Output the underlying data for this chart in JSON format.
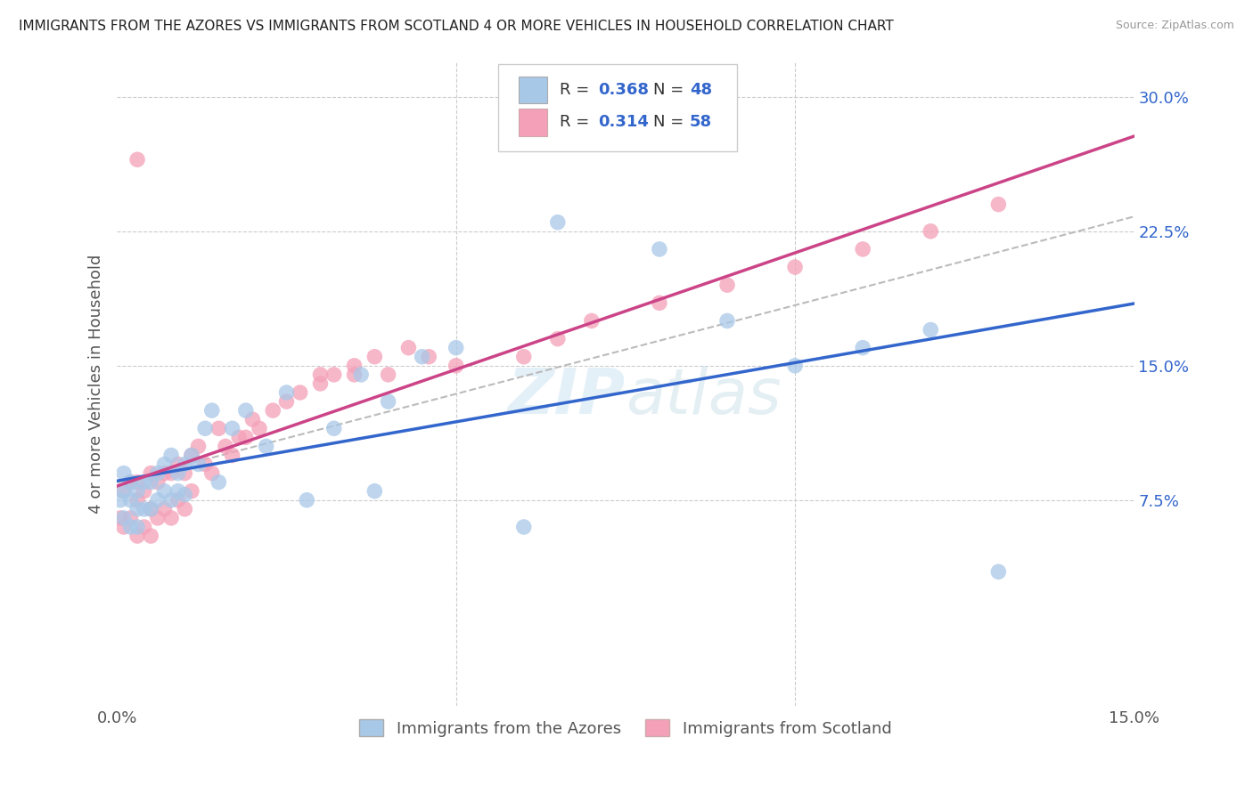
{
  "title": "IMMIGRANTS FROM THE AZORES VS IMMIGRANTS FROM SCOTLAND 4 OR MORE VEHICLES IN HOUSEHOLD CORRELATION CHART",
  "source": "Source: ZipAtlas.com",
  "ylabel": "4 or more Vehicles in Household",
  "color_azores": "#a8c8e8",
  "color_scotland": "#f4a0b8",
  "line_color_azores": "#3366cc",
  "line_color_scotland": "#cc4488",
  "watermark": "ZIPatlas",
  "legend_label1": "Immigrants from the Azores",
  "legend_label2": "Immigrants from Scotland",
  "xlim": [
    0.0,
    0.15
  ],
  "ylim": [
    -0.04,
    0.32
  ],
  "azores_x": [
    0.0005,
    0.001,
    0.001,
    0.001,
    0.002,
    0.002,
    0.002,
    0.003,
    0.003,
    0.003,
    0.004,
    0.004,
    0.005,
    0.005,
    0.006,
    0.006,
    0.007,
    0.007,
    0.008,
    0.008,
    0.009,
    0.009,
    0.01,
    0.01,
    0.011,
    0.012,
    0.013,
    0.014,
    0.015,
    0.017,
    0.019,
    0.022,
    0.025,
    0.028,
    0.032,
    0.036,
    0.04,
    0.045,
    0.05,
    0.06,
    0.065,
    0.08,
    0.09,
    0.1,
    0.11,
    0.12,
    0.13,
    0.038
  ],
  "azores_y": [
    0.075,
    0.09,
    0.08,
    0.065,
    0.085,
    0.075,
    0.06,
    0.08,
    0.07,
    0.06,
    0.085,
    0.07,
    0.085,
    0.07,
    0.09,
    0.075,
    0.095,
    0.08,
    0.1,
    0.075,
    0.09,
    0.08,
    0.095,
    0.078,
    0.1,
    0.095,
    0.115,
    0.125,
    0.085,
    0.115,
    0.125,
    0.105,
    0.135,
    0.075,
    0.115,
    0.145,
    0.13,
    0.155,
    0.16,
    0.06,
    0.23,
    0.215,
    0.175,
    0.15,
    0.16,
    0.17,
    0.035,
    0.08
  ],
  "scotland_x": [
    0.0005,
    0.001,
    0.001,
    0.002,
    0.002,
    0.003,
    0.003,
    0.003,
    0.004,
    0.004,
    0.005,
    0.005,
    0.005,
    0.006,
    0.006,
    0.007,
    0.007,
    0.008,
    0.008,
    0.009,
    0.009,
    0.01,
    0.01,
    0.011,
    0.011,
    0.012,
    0.013,
    0.014,
    0.015,
    0.016,
    0.017,
    0.018,
    0.019,
    0.02,
    0.021,
    0.023,
    0.025,
    0.027,
    0.03,
    0.032,
    0.035,
    0.038,
    0.04,
    0.043,
    0.046,
    0.03,
    0.035,
    0.05,
    0.06,
    0.065,
    0.07,
    0.08,
    0.09,
    0.1,
    0.11,
    0.12,
    0.13,
    0.003
  ],
  "scotland_y": [
    0.065,
    0.08,
    0.06,
    0.085,
    0.065,
    0.085,
    0.075,
    0.055,
    0.08,
    0.06,
    0.09,
    0.07,
    0.055,
    0.085,
    0.065,
    0.09,
    0.07,
    0.09,
    0.065,
    0.095,
    0.075,
    0.09,
    0.07,
    0.1,
    0.08,
    0.105,
    0.095,
    0.09,
    0.115,
    0.105,
    0.1,
    0.11,
    0.11,
    0.12,
    0.115,
    0.125,
    0.13,
    0.135,
    0.145,
    0.145,
    0.145,
    0.155,
    0.145,
    0.16,
    0.155,
    0.14,
    0.15,
    0.15,
    0.155,
    0.165,
    0.175,
    0.185,
    0.195,
    0.205,
    0.215,
    0.225,
    0.24,
    0.265
  ]
}
